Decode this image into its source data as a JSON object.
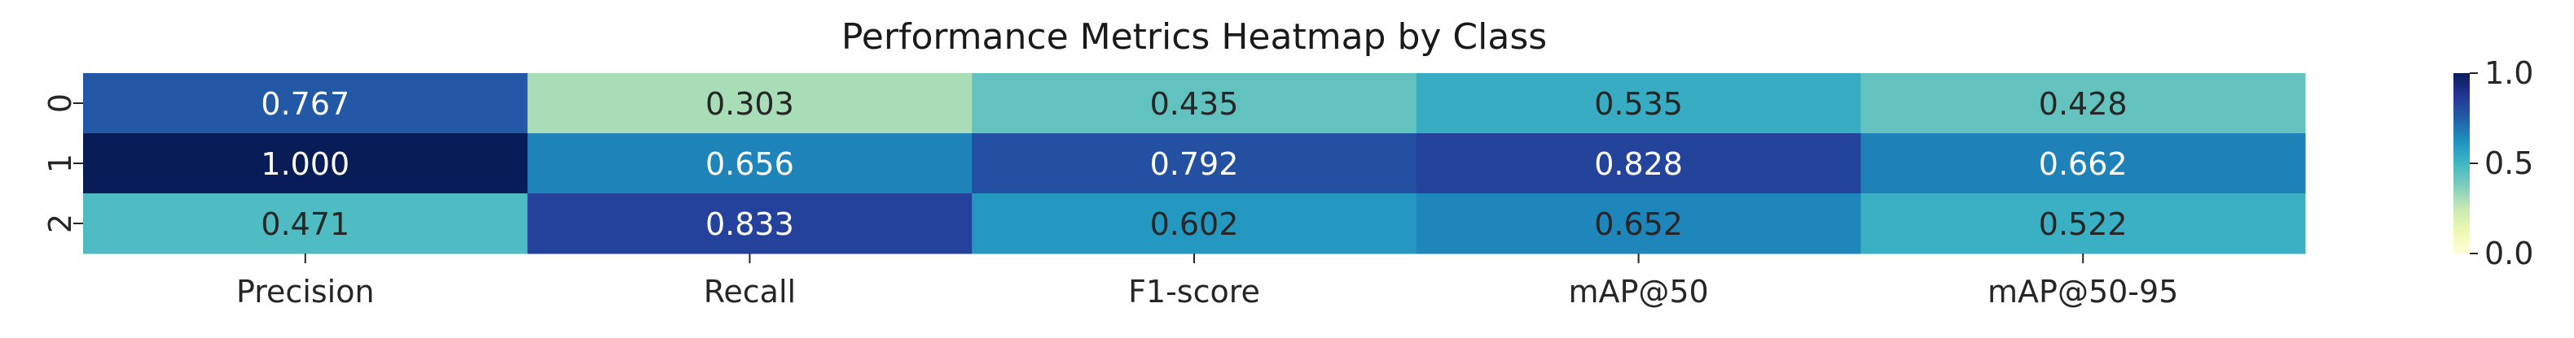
{
  "chart_data": {
    "type": "heatmap",
    "title": "Performance Metrics Heatmap by Class",
    "xlabel": "",
    "ylabel": "",
    "columns": [
      "Precision",
      "Recall",
      "F1-score",
      "mAP@50",
      "mAP@50-95"
    ],
    "rows": [
      "0",
      "1",
      "2"
    ],
    "values": [
      [
        0.767,
        0.303,
        0.435,
        0.535,
        0.428
      ],
      [
        1.0,
        0.656,
        0.792,
        0.828,
        0.662
      ],
      [
        0.471,
        0.833,
        0.602,
        0.652,
        0.522
      ]
    ],
    "value_labels": [
      [
        "0.767",
        "0.303",
        "0.435",
        "0.535",
        "0.428"
      ],
      [
        "1.000",
        "0.656",
        "0.792",
        "0.828",
        "0.662"
      ],
      [
        "0.471",
        "0.833",
        "0.602",
        "0.652",
        "0.522"
      ]
    ],
    "colormap": "YlGnBu",
    "vmin": 0.0,
    "vmax": 1.0,
    "colorbar_ticks": [
      "0.0",
      "0.5",
      "1.0"
    ],
    "colorbar_tick_values": [
      0.0,
      0.5,
      1.0
    ],
    "text_color_light": "#ffffff",
    "text_color_dark": "#262626"
  }
}
